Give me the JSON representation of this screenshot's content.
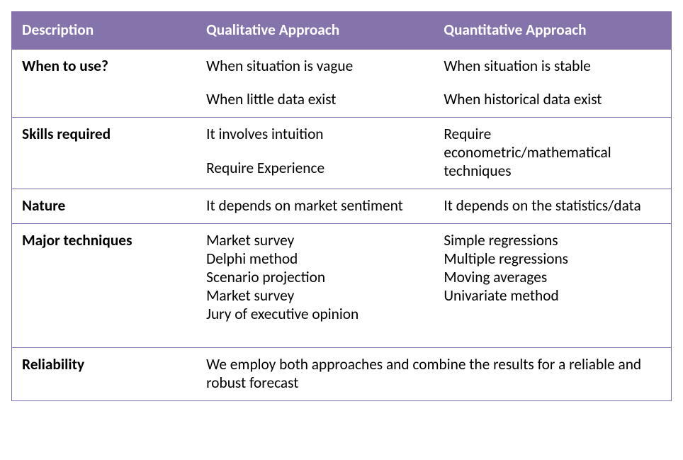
{
  "table": {
    "type": "table",
    "columns": [
      "Description",
      "Qualitative Approach",
      "Quantitative Approach"
    ],
    "col_widths_pct": [
      28,
      36,
      36
    ],
    "header_bg": "#8573ac",
    "header_text_color": "#ffffff",
    "border_color": "#7c6aa6",
    "body_bg": "#ffffff",
    "body_text_color": "#000000",
    "font_family": "Calibri",
    "header_fontsize_pt": 16,
    "body_fontsize_pt": 16,
    "rows": [
      {
        "label": "When to use?",
        "qual": [
          "When situation is vague",
          "",
          "When little data exist"
        ],
        "quant": [
          "When situation is stable",
          "",
          "When historical data exist"
        ]
      },
      {
        "label": "Skills  required",
        "qual": [
          "It involves intuition",
          "",
          "Require Experience"
        ],
        "quant": [
          "Require econometric/mathematical techniques"
        ]
      },
      {
        "label": "Nature",
        "qual": [
          "It depends on market sentiment"
        ],
        "quant": [
          "It depends on the statistics/data"
        ]
      },
      {
        "label": "Major techniques",
        "qual": [
          "Market survey",
          "Delphi method",
          "Scenario projection",
          "Market survey",
          "Jury of executive opinion",
          ""
        ],
        "quant": [
          "Simple regressions",
          "Multiple regressions",
          "Moving averages",
          "Univariate  method"
        ]
      },
      {
        "label": "Reliability",
        "merged": "We employ both approaches and combine the results for a reliable and robust forecast"
      }
    ]
  }
}
